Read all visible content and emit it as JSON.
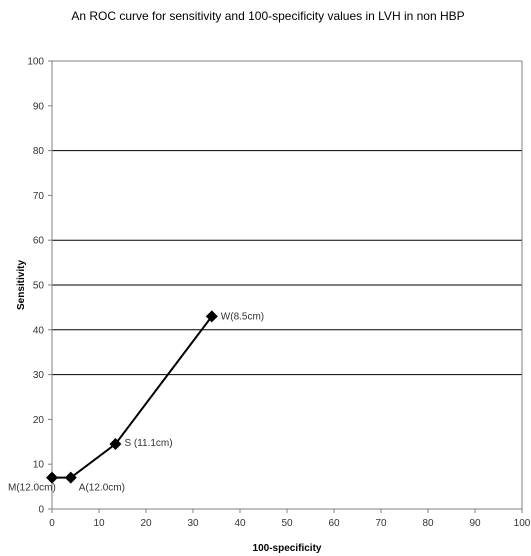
{
  "chart_data": {
    "type": "line",
    "title": "An ROC curve for sensitivity and 100-specificity values in LVH in non HBP",
    "xlabel": "100-specificity",
    "ylabel": "Sensitivity",
    "xlim": [
      0,
      100
    ],
    "ylim": [
      0,
      100
    ],
    "xticks": [
      0,
      10,
      20,
      30,
      40,
      50,
      60,
      70,
      80,
      90,
      100
    ],
    "yticks": [
      0,
      10,
      20,
      30,
      40,
      50,
      60,
      70,
      80,
      90,
      100
    ],
    "grid": "horizontal major gridlines",
    "legend": "none",
    "series": [
      {
        "points": [
          {
            "x": 0,
            "y": 7,
            "label": "M(12.0cm)"
          },
          {
            "x": 4,
            "y": 7,
            "label": "A(12.0cm)"
          },
          {
            "x": 13.5,
            "y": 14.5,
            "label": "S (11.1cm)"
          },
          {
            "x": 34,
            "y": 43,
            "label": "W(8.5cm)"
          }
        ]
      }
    ],
    "colors": {
      "line": "#000000",
      "marker": "#000000",
      "grid": "#000000",
      "axis": "#808080"
    }
  }
}
